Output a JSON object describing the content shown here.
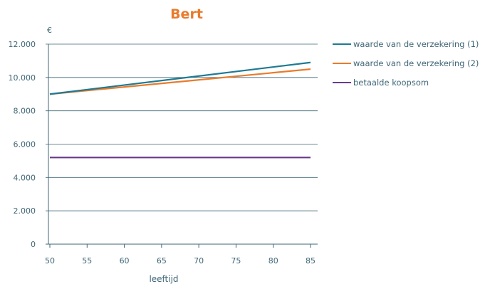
{
  "chart_data": {
    "type": "line",
    "title": "Bert",
    "unit_label": "€",
    "xlabel": "leeftijd",
    "ylabel": "",
    "x_ticks": [
      50,
      55,
      60,
      65,
      70,
      75,
      80,
      85
    ],
    "y_ticks": [
      0,
      2000,
      4000,
      6000,
      8000,
      10000,
      12000
    ],
    "y_tick_labels": [
      "0",
      "2.000",
      "4.000",
      "6.000",
      "8.000",
      "10.000",
      "12.000"
    ],
    "xlim": [
      50,
      85
    ],
    "ylim": [
      0,
      12000
    ],
    "grid": "horizontal",
    "legend_position": "right",
    "series": [
      {
        "name": "waarde van de verzekering (1)",
        "color": "#1e7a93",
        "x": [
          50,
          85
        ],
        "values": [
          9000,
          10900
        ]
      },
      {
        "name": "waarde van de verzekering (2)",
        "color": "#e87b2c",
        "x": [
          50,
          85
        ],
        "values": [
          9000,
          10500
        ]
      },
      {
        "name": "betaalde koopsom",
        "color": "#6a3c8c",
        "x": [
          50,
          85
        ],
        "values": [
          5200,
          5200
        ]
      }
    ],
    "colors": {
      "title": "#e87b2c",
      "axis": "#3f6677",
      "grid": "#3f6677"
    }
  }
}
